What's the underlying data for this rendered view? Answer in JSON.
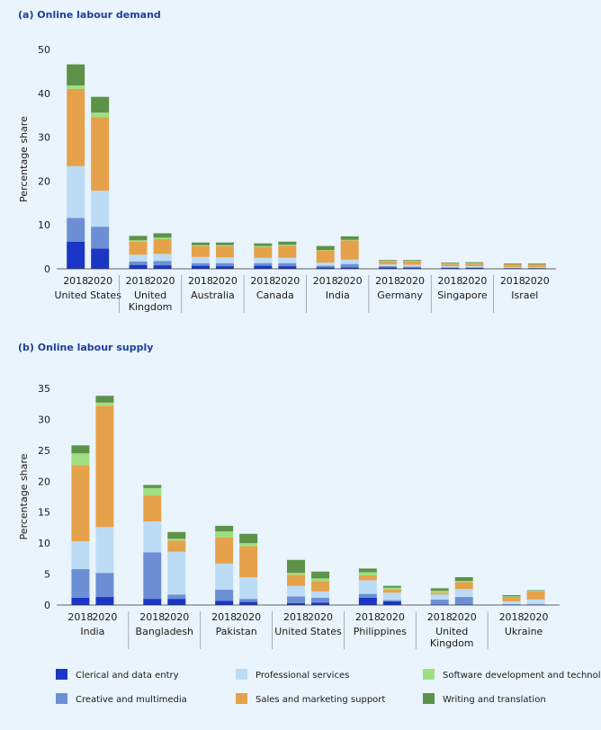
{
  "legend": [
    {
      "key": "clerical",
      "label": "Clerical and data entry",
      "color": "#1b36c4"
    },
    {
      "key": "professional",
      "label": "Professional services",
      "color": "#bcdcf5"
    },
    {
      "key": "software",
      "label": "Software development and technology",
      "color": "#9ddf80"
    },
    {
      "key": "creative",
      "label": "Creative and multimedia",
      "color": "#6c8fd6"
    },
    {
      "key": "sales",
      "label": "Sales and marketing support",
      "color": "#e6a24a"
    },
    {
      "key": "writing",
      "label": "Writing and translation",
      "color": "#5d9249"
    }
  ],
  "chart_data": [
    {
      "type": "bar",
      "stacked": true,
      "title": "(a) Online labour demand",
      "ylabel": "Percentage share",
      "ylim": [
        0,
        50
      ],
      "yticks": [
        0,
        10,
        20,
        30,
        40,
        50
      ],
      "groups": [
        {
          "label": [
            "United States"
          ],
          "bars": [
            {
              "year": "2018",
              "values": [
                6.2,
                11.8,
                0.8,
                5.4,
                17.6,
                4.8
              ]
            },
            {
              "year": "2020",
              "values": [
                4.6,
                8.2,
                1.0,
                5.0,
                16.8,
                3.6
              ]
            }
          ]
        },
        {
          "label": [
            "United",
            "Kingdom"
          ],
          "bars": [
            {
              "year": "2018",
              "values": [
                0.9,
                1.5,
                0.3,
                0.8,
                3.0,
                1.0
              ]
            },
            {
              "year": "2020",
              "values": [
                0.8,
                1.6,
                0.3,
                1.0,
                3.4,
                1.0
              ]
            }
          ]
        },
        {
          "label": [
            "Australia"
          ],
          "bars": [
            {
              "year": "2018",
              "values": [
                0.7,
                1.4,
                0.2,
                0.6,
                2.5,
                0.6
              ]
            },
            {
              "year": "2020",
              "values": [
                0.6,
                1.3,
                0.2,
                0.7,
                2.6,
                0.6
              ]
            }
          ]
        },
        {
          "label": [
            "Canada"
          ],
          "bars": [
            {
              "year": "2018",
              "values": [
                0.7,
                1.2,
                0.2,
                0.6,
                2.5,
                0.6
              ]
            },
            {
              "year": "2020",
              "values": [
                0.6,
                1.2,
                0.2,
                0.7,
                2.8,
                0.7
              ]
            }
          ]
        },
        {
          "label": [
            "India"
          ],
          "bars": [
            {
              "year": "2018",
              "values": [
                0.3,
                0.7,
                0.1,
                0.4,
                2.8,
                0.9
              ]
            },
            {
              "year": "2020",
              "values": [
                0.3,
                1.0,
                0.1,
                0.8,
                4.4,
                0.8
              ]
            }
          ]
        },
        {
          "label": [
            "Germany"
          ],
          "bars": [
            {
              "year": "2018",
              "values": [
                0.3,
                0.4,
                0.1,
                0.3,
                0.7,
                0.2
              ]
            },
            {
              "year": "2020",
              "values": [
                0.2,
                0.4,
                0.1,
                0.3,
                0.8,
                0.2
              ]
            }
          ]
        },
        {
          "label": [
            "Singapore"
          ],
          "bars": [
            {
              "year": "2018",
              "values": [
                0.2,
                0.3,
                0.1,
                0.1,
                0.5,
                0.2
              ]
            },
            {
              "year": "2020",
              "values": [
                0.2,
                0.3,
                0.1,
                0.1,
                0.6,
                0.2
              ]
            }
          ]
        },
        {
          "label": [
            "Israel"
          ],
          "bars": [
            {
              "year": "2018",
              "values": [
                0.1,
                0.2,
                0.0,
                0.1,
                0.6,
                0.2
              ]
            },
            {
              "year": "2020",
              "values": [
                0.1,
                0.2,
                0.0,
                0.1,
                0.6,
                0.2
              ]
            }
          ]
        }
      ]
    },
    {
      "type": "bar",
      "stacked": true,
      "title": "(b) Online labour supply",
      "ylabel": "Percentage share",
      "ylim": [
        0,
        35
      ],
      "yticks": [
        0,
        5,
        10,
        15,
        20,
        25,
        30,
        35
      ],
      "groups": [
        {
          "label": [
            "India"
          ],
          "bars": [
            {
              "year": "2018",
              "values": [
                1.2,
                4.5,
                1.9,
                4.6,
                12.3,
                1.3
              ]
            },
            {
              "year": "2020",
              "values": [
                1.3,
                7.4,
                0.5,
                3.9,
                19.6,
                1.1
              ]
            }
          ]
        },
        {
          "label": [
            "Bangladesh"
          ],
          "bars": [
            {
              "year": "2018",
              "values": [
                1.0,
                5.0,
                1.2,
                7.5,
                4.2,
                0.5
              ]
            },
            {
              "year": "2020",
              "values": [
                1.0,
                6.9,
                0.3,
                0.7,
                1.8,
                1.1
              ]
            }
          ]
        },
        {
          "label": [
            "Pakistan"
          ],
          "bars": [
            {
              "year": "2018",
              "values": [
                0.7,
                4.2,
                1.0,
                1.8,
                4.2,
                0.9
              ]
            },
            {
              "year": "2020",
              "values": [
                0.5,
                3.5,
                0.5,
                0.5,
                5.0,
                1.5
              ]
            }
          ]
        },
        {
          "label": [
            "United States"
          ],
          "bars": [
            {
              "year": "2018",
              "values": [
                0.3,
                1.7,
                0.3,
                1.1,
                1.8,
                2.1
              ]
            },
            {
              "year": "2020",
              "values": [
                0.4,
                1.0,
                0.4,
                0.8,
                1.7,
                1.1
              ]
            }
          ]
        },
        {
          "label": [
            "Philippines"
          ],
          "bars": [
            {
              "year": "2018",
              "values": [
                1.2,
                2.2,
                0.5,
                0.6,
                0.8,
                0.6
              ]
            },
            {
              "year": "2020",
              "values": [
                0.6,
                1.2,
                0.3,
                0.2,
                0.5,
                0.3
              ]
            }
          ]
        },
        {
          "label": [
            "United",
            "Kingdom"
          ],
          "bars": [
            {
              "year": "2018",
              "values": [
                0.1,
                0.8,
                0.3,
                0.8,
                0.3,
                0.4
              ]
            },
            {
              "year": "2020",
              "values": [
                0.1,
                1.3,
                0.2,
                1.2,
                1.1,
                0.6
              ]
            }
          ]
        },
        {
          "label": [
            "Ukraine"
          ],
          "bars": [
            {
              "year": "2018",
              "values": [
                0.1,
                0.5,
                0.1,
                0.0,
                0.7,
                0.2
              ]
            },
            {
              "year": "2020",
              "values": [
                0.1,
                0.8,
                0.1,
                0.0,
                1.3,
                0.1
              ]
            }
          ]
        }
      ]
    }
  ]
}
